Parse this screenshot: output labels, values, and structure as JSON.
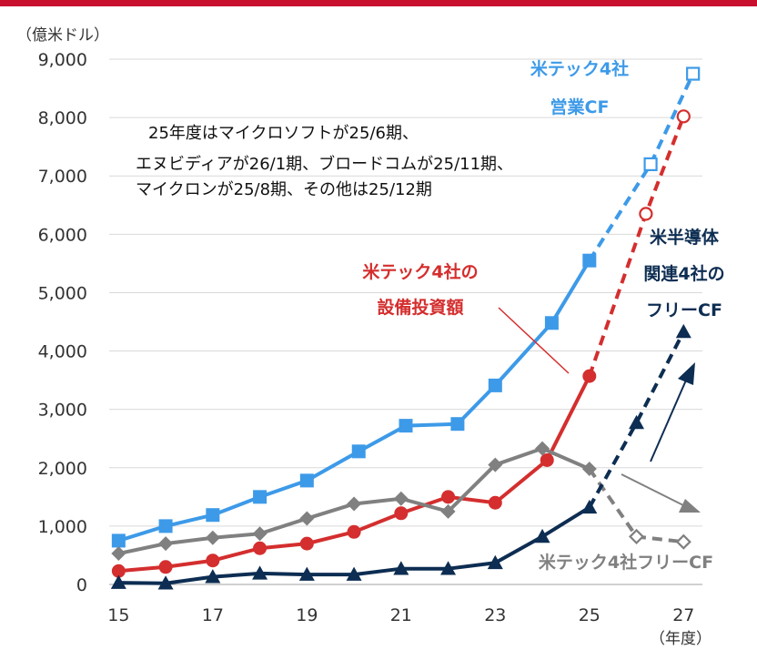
{
  "chart_data": {
    "type": "line",
    "unit_label": "（億米ドル）",
    "x_unit_label": "（年度）",
    "x_ticks": [
      "15",
      "17",
      "19",
      "21",
      "23",
      "25",
      "27"
    ],
    "y_ticks": [
      "0",
      "1,000",
      "2,000",
      "3,000",
      "4,000",
      "5,000",
      "6,000",
      "7,000",
      "8,000",
      "9,000"
    ],
    "ylim": [
      0,
      9000
    ],
    "xlim": [
      14.8,
      27.4
    ],
    "grid": true,
    "note_lines": [
      "25年度はマイクロソフトが25/6期、",
      "エヌビディアが26/1期、ブロードコムが25/11期、",
      "マイクロンが25/8期、その他は25/12期"
    ],
    "series": [
      {
        "name": "米テック4社 営業CF",
        "label_lines": [
          "米テック4社",
          "営業CF"
        ],
        "color": "#3d9ae8",
        "marker": "square",
        "actual": [
          [
            15.0,
            750
          ],
          [
            16.0,
            1000
          ],
          [
            17.0,
            1190
          ],
          [
            18.0,
            1500
          ],
          [
            19.0,
            1780
          ],
          [
            20.1,
            2280
          ],
          [
            21.1,
            2720
          ],
          [
            22.2,
            2750
          ],
          [
            23.0,
            3410
          ],
          [
            24.2,
            4480
          ],
          [
            25.0,
            5550
          ]
        ],
        "forecast": [
          [
            26.3,
            7200
          ],
          [
            27.2,
            8750
          ]
        ]
      },
      {
        "name": "米テック4社の 設備投資額",
        "label_lines": [
          "米テック4社の",
          "設備投資額"
        ],
        "color": "#d42e2e",
        "marker": "circle",
        "actual": [
          [
            15.0,
            230
          ],
          [
            16.0,
            300
          ],
          [
            17.0,
            410
          ],
          [
            18.0,
            620
          ],
          [
            19.0,
            700
          ],
          [
            20.0,
            900
          ],
          [
            21.0,
            1220
          ],
          [
            22.0,
            1500
          ],
          [
            23.0,
            1400
          ],
          [
            24.1,
            2130
          ],
          [
            25.0,
            3570
          ]
        ],
        "forecast": [
          [
            26.2,
            6350
          ],
          [
            27.0,
            8020
          ]
        ]
      },
      {
        "name": "米テック4社フリーCF",
        "label_lines": [
          "米テック4社フリーCF"
        ],
        "color": "#808080",
        "marker": "diamond",
        "actual": [
          [
            15.0,
            530
          ],
          [
            16.0,
            700
          ],
          [
            17.0,
            800
          ],
          [
            18.0,
            870
          ],
          [
            19.0,
            1130
          ],
          [
            20.0,
            1380
          ],
          [
            21.0,
            1470
          ],
          [
            22.0,
            1250
          ],
          [
            23.0,
            2050
          ],
          [
            24.0,
            2330
          ],
          [
            25.0,
            1980
          ]
        ],
        "forecast": [
          [
            26.0,
            820
          ],
          [
            27.0,
            730
          ]
        ]
      },
      {
        "name": "米半導体 関連4社の フリーCF",
        "label_lines": [
          "米半導体",
          "関連4社の",
          "フリーCF"
        ],
        "color": "#0d2d52",
        "marker": "triangle",
        "actual": [
          [
            15.0,
            30
          ],
          [
            16.0,
            20
          ],
          [
            17.0,
            130
          ],
          [
            18.0,
            190
          ],
          [
            19.0,
            170
          ],
          [
            20.0,
            170
          ],
          [
            21.0,
            270
          ],
          [
            22.0,
            270
          ],
          [
            23.0,
            370
          ],
          [
            24.0,
            820
          ],
          [
            25.0,
            1320
          ]
        ],
        "forecast": [
          [
            26.0,
            2770
          ],
          [
            27.0,
            4330
          ]
        ]
      }
    ]
  }
}
